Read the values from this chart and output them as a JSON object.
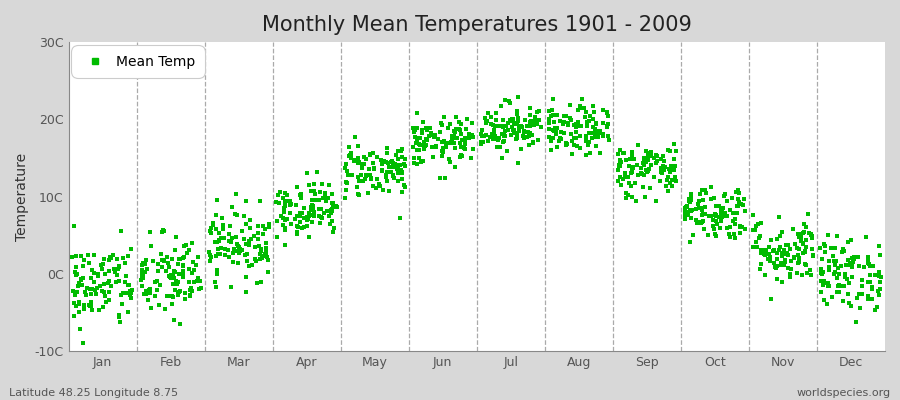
{
  "title": "Monthly Mean Temperatures 1901 - 2009",
  "ylabel": "Temperature",
  "ylim": [
    -10,
    30
  ],
  "yticks": [
    -10,
    0,
    10,
    20,
    30
  ],
  "ytick_labels": [
    "-10C",
    "0C",
    "10C",
    "20C",
    "30C"
  ],
  "months": [
    "Jan",
    "Feb",
    "Mar",
    "Apr",
    "May",
    "Jun",
    "Jul",
    "Aug",
    "Sep",
    "Oct",
    "Nov",
    "Dec"
  ],
  "month_means": [
    -1.5,
    -0.5,
    4.0,
    8.5,
    13.5,
    17.0,
    19.0,
    18.5,
    13.5,
    8.0,
    3.0,
    0.0
  ],
  "month_stds": [
    2.8,
    2.8,
    2.3,
    1.8,
    1.8,
    1.6,
    1.6,
    1.6,
    1.8,
    1.8,
    2.2,
    2.4
  ],
  "n_years": 109,
  "dot_color": "#00bb00",
  "dot_size": 6,
  "outer_bg_color": "#d8d8d8",
  "plot_bg_color": "#ffffff",
  "legend_label": "Mean Temp",
  "footer_left": "Latitude 48.25 Longitude 8.75",
  "footer_right": "worldspecies.org",
  "title_fontsize": 15,
  "axis_label_fontsize": 10,
  "tick_fontsize": 9,
  "footer_fontsize": 8
}
